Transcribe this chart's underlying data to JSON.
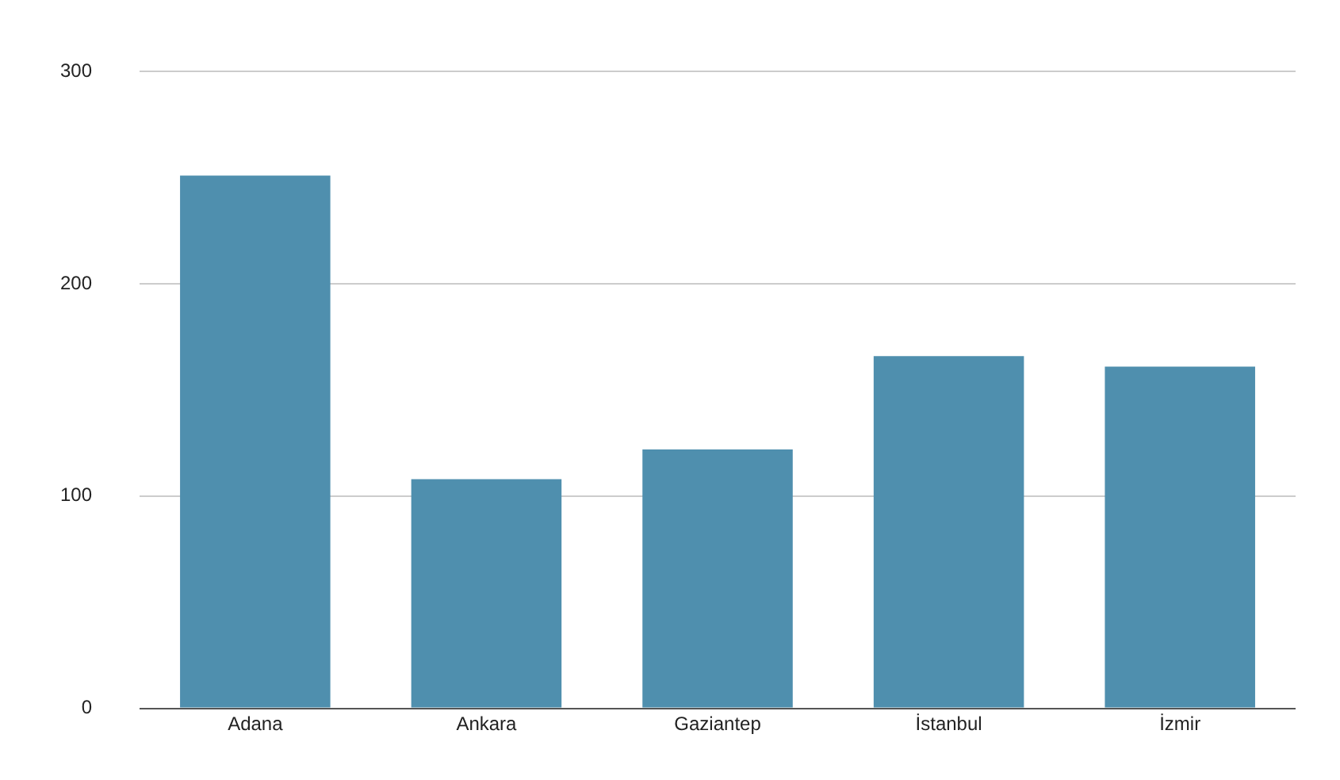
{
  "chart_data": {
    "type": "bar",
    "categories": [
      "Adana",
      "Ankara",
      "Gaziantep",
      "İstanbul",
      "İzmir"
    ],
    "values": [
      251,
      108,
      122,
      166,
      161
    ],
    "color": "#4f8fae",
    "ylim": [
      0,
      300
    ],
    "yticks": [
      0,
      100,
      200,
      300
    ],
    "grid": "y",
    "legend": false
  }
}
